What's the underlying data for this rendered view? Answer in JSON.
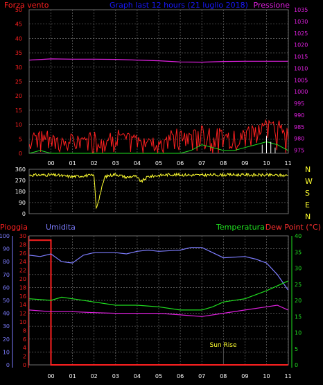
{
  "colors": {
    "background": "#000000",
    "grid": "#6e6e6e",
    "wind": "#ff2020",
    "gust": "#ffffff",
    "pressure": "#e020e0",
    "direction": "#ffff30",
    "rain": "#ff2020",
    "humidity": "#7d7dff",
    "temperature": "#20e020",
    "dewpoint": "#e020e0",
    "title": "#1818ff",
    "sunrise": "#ffff30"
  },
  "panel1": {
    "left_label": "Forza vento",
    "title": "Graph last 12 hours (21 luglio 2018)",
    "right_label": "Pressione"
  },
  "panel2": {
    "compass": [
      "N",
      "W",
      "S",
      "E",
      "N"
    ]
  },
  "panel3": {
    "left_label1": "Pioggia",
    "left_label2": "Umidita",
    "right_label1": "Temperatura",
    "right_label2": "Dew Point (°C)",
    "annotation": "Sun Rise"
  },
  "chart_data": [
    {
      "type": "line",
      "title": "Graph last 12 hours (21 luglio 2018)",
      "x_ticks": [
        "00",
        "01",
        "02",
        "03",
        "04",
        "05",
        "06",
        "07",
        "08",
        "09",
        "10",
        "11"
      ],
      "left_axis": {
        "label": "Forza vento",
        "ticks": [
          0,
          5,
          10,
          15,
          20,
          25,
          30,
          35,
          40,
          45,
          50
        ],
        "ylim": [
          0,
          50
        ]
      },
      "right_axis": {
        "label": "Pressione",
        "ticks": [
          975,
          980,
          985,
          990,
          995,
          1000,
          1005,
          1010,
          1015,
          1020,
          1025,
          1030,
          1035
        ],
        "ylim": [
          973.7,
          1035
        ]
      },
      "series": [
        {
          "name": "Pressione",
          "axis": "right",
          "x": [
            -1.0,
            0.0,
            1.0,
            2.0,
            3.0,
            4.0,
            5.0,
            6.0,
            7.0,
            8.0,
            9.0,
            10.0,
            11.0
          ],
          "values": [
            1013.5,
            1014.0,
            1013.9,
            1013.9,
            1013.8,
            1013.5,
            1013.2,
            1012.7,
            1012.6,
            1012.9,
            1013.0,
            1013.0,
            1013.0
          ]
        },
        {
          "axis": "left",
          "x": [
            -1.0,
            -0.5,
            0.0,
            0.5,
            1.0,
            1.5,
            2.0,
            2.5,
            3.0,
            3.5,
            4.0,
            4.5,
            5.0,
            5.5,
            6.0,
            6.5,
            7.0,
            7.5,
            8.0,
            8.5,
            9.0,
            9.5,
            10.0,
            10.5,
            11.0
          ],
          "values": [
            4,
            7,
            5,
            4,
            3,
            4,
            5,
            4,
            5,
            5,
            4,
            4,
            4,
            5,
            5,
            6,
            7,
            5,
            5,
            5,
            7,
            9,
            10,
            9,
            5
          ],
          "peaks": [
            11,
            8,
            6,
            6,
            7,
            7,
            8,
            8,
            9,
            7,
            7,
            6,
            7,
            8,
            9,
            7,
            11,
            10,
            8,
            8,
            9,
            11,
            12,
            12,
            9
          ]
        },
        {
          "axis": "left",
          "x": [
            -1.0,
            -0.5,
            0.0,
            0.5,
            1.0,
            1.5,
            2.0,
            2.5,
            3.0,
            3.5,
            4.0,
            4.5,
            5.0,
            5.5,
            6.0,
            6.5,
            7.0,
            7.5,
            8.0,
            8.5,
            9.0,
            9.5,
            10.0,
            10.5,
            11.0
          ],
          "values": [
            0,
            1,
            0,
            0,
            0,
            0,
            0,
            0,
            0,
            0,
            0,
            0,
            0,
            0,
            0,
            1,
            3,
            2,
            1,
            1,
            2,
            3,
            4,
            3,
            1
          ]
        }
      ]
    },
    {
      "type": "line",
      "x_ticks": [
        "00",
        "01",
        "02",
        "03",
        "04",
        "05",
        "06",
        "07",
        "08",
        "09",
        "10",
        "11"
      ],
      "left_axis": {
        "ticks": [
          0,
          90,
          180,
          270,
          360
        ],
        "ylim": [
          0,
          360
        ]
      },
      "right_axis": {
        "ticks": [
          "N",
          "W",
          "S",
          "E",
          "N"
        ]
      },
      "series": [
        {
          "axis": "left",
          "x": [
            -1.0,
            0.0,
            1.0,
            1.5,
            2.0,
            2.1,
            2.5,
            3.0,
            3.5,
            3.9,
            4.2,
            4.5,
            5.0,
            5.5,
            6.0,
            7.0,
            8.0,
            9.0,
            10.0,
            11.0
          ],
          "values": [
            312,
            315,
            300,
            308,
            310,
            40,
            300,
            320,
            295,
            305,
            260,
            300,
            310,
            318,
            315,
            312,
            315,
            315,
            312,
            310
          ]
        }
      ]
    },
    {
      "type": "line",
      "x_ticks": [
        "00",
        "01",
        "02",
        "03",
        "04",
        "05",
        "06",
        "07",
        "08",
        "09",
        "10",
        "11"
      ],
      "left_axes": [
        {
          "label": "Pioggia",
          "ticks": [
            0,
            2,
            4,
            6,
            8,
            10,
            12,
            14,
            16,
            18,
            20,
            22,
            24,
            26,
            28,
            30
          ],
          "ylim": [
            0,
            30
          ]
        },
        {
          "label": "Umidita",
          "ticks": [
            0,
            10,
            20,
            30,
            40,
            50,
            60,
            70,
            80,
            90,
            100
          ],
          "ylim": [
            0,
            100
          ]
        }
      ],
      "right_axis": {
        "label": "Temperatura / Dew Point (°C)",
        "ticks": [
          0,
          5,
          10,
          15,
          20,
          25,
          30,
          35,
          40
        ],
        "ylim": [
          0,
          40
        ]
      },
      "annotation": {
        "text": "Sun Rise",
        "x": 8.0
      },
      "series": [
        {
          "name": "Pioggia",
          "axis": "Pioggia",
          "x": [
            -1.0,
            0.0,
            0.0,
            11.0
          ],
          "values": [
            29,
            29,
            0,
            0
          ]
        },
        {
          "name": "Umidita",
          "axis": "Umidita",
          "x": [
            -1.0,
            -0.5,
            0.0,
            0.5,
            1.0,
            1.5,
            2.0,
            3.0,
            3.5,
            4.0,
            4.5,
            5.0,
            6.0,
            6.5,
            7.0,
            7.5,
            8.0,
            9.0,
            9.5,
            10.0,
            10.5,
            11.0
          ],
          "values": [
            85,
            84,
            86,
            80,
            79,
            85,
            87,
            87,
            86,
            88,
            89,
            88,
            89,
            91,
            91,
            87,
            83,
            84,
            82,
            79,
            70,
            58
          ]
        },
        {
          "name": "Temperatura",
          "axis": "right",
          "x": [
            -1.0,
            0.0,
            0.5,
            1.0,
            2.0,
            3.0,
            4.0,
            5.0,
            6.0,
            7.0,
            7.5,
            8.0,
            9.0,
            10.0,
            11.0
          ],
          "values": [
            20.5,
            20.0,
            21.0,
            20.5,
            19.5,
            18.5,
            18.5,
            18.0,
            17.0,
            17.0,
            18.0,
            19.5,
            20.5,
            23.0,
            26.0
          ]
        },
        {
          "name": "Dew Point (°C)",
          "axis": "right",
          "x": [
            -1.0,
            0.0,
            1.0,
            2.0,
            3.0,
            4.0,
            5.0,
            6.0,
            7.0,
            8.0,
            9.0,
            10.0,
            10.5,
            11.0
          ],
          "values": [
            17.0,
            16.5,
            16.5,
            16.2,
            16.0,
            16.0,
            16.0,
            15.5,
            15.0,
            16.0,
            17.0,
            18.0,
            18.5,
            17.0
          ]
        }
      ]
    }
  ]
}
